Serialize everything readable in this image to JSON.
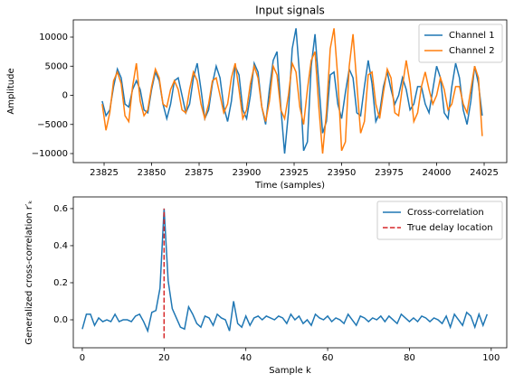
{
  "chart_data": [
    {
      "type": "line",
      "title": "Input signals",
      "xlabel": "Time (samples)",
      "ylabel": "Amplitude",
      "x": [
        23824,
        23826,
        23828,
        23830,
        23832,
        23834,
        23836,
        23838,
        23840,
        23842,
        23844,
        23846,
        23848,
        23850,
        23852,
        23854,
        23856,
        23858,
        23860,
        23862,
        23864,
        23866,
        23868,
        23870,
        23872,
        23874,
        23876,
        23878,
        23880,
        23882,
        23884,
        23886,
        23888,
        23890,
        23892,
        23894,
        23896,
        23898,
        23900,
        23902,
        23904,
        23906,
        23908,
        23910,
        23912,
        23914,
        23916,
        23918,
        23920,
        23922,
        23924,
        23926,
        23928,
        23930,
        23932,
        23934,
        23936,
        23938,
        23940,
        23942,
        23944,
        23946,
        23948,
        23950,
        23952,
        23954,
        23956,
        23958,
        23960,
        23962,
        23964,
        23966,
        23968,
        23970,
        23972,
        23974,
        23976,
        23978,
        23980,
        23982,
        23984,
        23986,
        23988,
        23990,
        23992,
        23994,
        23996,
        23998,
        24000,
        24002,
        24004,
        24006,
        24008,
        24010,
        24012,
        24014,
        24016,
        24018,
        24020,
        24022,
        24024
      ],
      "series": [
        {
          "name": "Channel 1",
          "color": "#1f77b4",
          "values": [
            -1000,
            -3500,
            -2500,
            1500,
            4500,
            3000,
            -1500,
            -2000,
            1000,
            2500,
            1000,
            -2500,
            -3000,
            1000,
            4000,
            2500,
            -1500,
            -4000,
            -1500,
            2500,
            3000,
            0,
            -3000,
            -1500,
            3000,
            5500,
            1000,
            -4000,
            -2500,
            2000,
            5000,
            3000,
            -2000,
            -4500,
            -1000,
            5000,
            3500,
            -2500,
            -4000,
            0,
            5500,
            4000,
            -2000,
            -5000,
            1000,
            6000,
            7500,
            -2000,
            -10000,
            -3000,
            8000,
            11500,
            3000,
            -9500,
            -8000,
            5000,
            10500,
            2000,
            -6500,
            -4500,
            3500,
            4000,
            -1500,
            -4000,
            500,
            4500,
            3000,
            -3000,
            -3500,
            1500,
            6000,
            2000,
            -4500,
            -3000,
            1500,
            4000,
            1000,
            -1500,
            0,
            3000,
            1000,
            -2500,
            -1500,
            1500,
            1500,
            -1500,
            -3000,
            1000,
            5000,
            3000,
            -3000,
            -4000,
            1500,
            5500,
            3000,
            -2500,
            -5000,
            -1000,
            5000,
            2000,
            -3500
          ]
        },
        {
          "name": "Channel 2",
          "color": "#ff7f0e",
          "values": [
            -1500,
            -6000,
            -3000,
            2500,
            4000,
            2000,
            -3500,
            -4500,
            1500,
            5500,
            -1000,
            -3500,
            -2500,
            1500,
            4500,
            3000,
            -1500,
            -2000,
            1000,
            2500,
            1000,
            -2500,
            -3000,
            1000,
            4000,
            2500,
            -1500,
            -4000,
            -1500,
            2500,
            3000,
            0,
            -3000,
            -1500,
            3000,
            5500,
            1000,
            -4000,
            -2500,
            2000,
            5000,
            3000,
            -2000,
            -4500,
            -1000,
            5000,
            3500,
            -2500,
            -4000,
            0,
            5500,
            4000,
            -2000,
            -5000,
            1000,
            6000,
            7500,
            -2000,
            -10000,
            -3000,
            8000,
            11500,
            3000,
            -9500,
            -8000,
            5000,
            10500,
            2000,
            -6500,
            -4500,
            3500,
            4000,
            -1500,
            -4000,
            500,
            4500,
            3000,
            -3000,
            -3500,
            1500,
            6000,
            2000,
            -4500,
            -3000,
            1500,
            4000,
            1000,
            -1500,
            0,
            3000,
            1000,
            -2500,
            -1500,
            1500,
            1500,
            -1500,
            -3000,
            1000,
            5000,
            3000,
            -7000
          ]
        }
      ],
      "xlim": [
        23808.8,
        24036.9
      ],
      "xticks": [
        23825,
        23850,
        23875,
        23900,
        23925,
        23950,
        23975,
        24000,
        24025
      ],
      "ylim": [
        -11550,
        12950
      ],
      "yticks": [
        {
          "value": -10000,
          "label": "−10000"
        },
        {
          "value": -5000,
          "label": "−5000"
        },
        0,
        5000,
        10000
      ],
      "legend": "upper right"
    },
    {
      "type": "line",
      "xlabel": "Sample k",
      "ylabel": "Generalized cross-correlation r′ₖ",
      "x": [
        0,
        1,
        2,
        3,
        4,
        5,
        6,
        7,
        8,
        9,
        10,
        11,
        12,
        13,
        14,
        15,
        16,
        17,
        18,
        19,
        20,
        21,
        22,
        23,
        24,
        25,
        26,
        27,
        28,
        29,
        30,
        31,
        32,
        33,
        34,
        35,
        36,
        37,
        38,
        39,
        40,
        41,
        42,
        43,
        44,
        45,
        46,
        47,
        48,
        49,
        50,
        51,
        52,
        53,
        54,
        55,
        56,
        57,
        58,
        59,
        60,
        61,
        62,
        63,
        64,
        65,
        66,
        67,
        68,
        69,
        70,
        71,
        72,
        73,
        74,
        75,
        76,
        77,
        78,
        79,
        80,
        81,
        82,
        83,
        84,
        85,
        86,
        87,
        88,
        89,
        90,
        91,
        92,
        93,
        94,
        95,
        96,
        97,
        98,
        99
      ],
      "series": [
        {
          "name": "Cross-correlation",
          "color": "#1f77b4",
          "values": [
            -0.05,
            0.03,
            0.03,
            -0.03,
            0.01,
            -0.01,
            0.0,
            -0.01,
            0.03,
            -0.01,
            0.0,
            0.0,
            -0.01,
            0.02,
            0.03,
            -0.01,
            -0.06,
            0.04,
            0.05,
            0.17,
            0.6,
            0.21,
            0.06,
            0.01,
            -0.04,
            -0.05,
            0.07,
            0.03,
            -0.02,
            -0.04,
            0.02,
            0.01,
            -0.03,
            0.03,
            0.01,
            0.0,
            -0.06,
            0.1,
            -0.02,
            -0.04,
            0.02,
            -0.03,
            0.01,
            0.02,
            0.0,
            0.02,
            0.01,
            0.0,
            0.02,
            0.01,
            -0.02,
            0.03,
            0.0,
            0.02,
            -0.02,
            0.0,
            -0.03,
            0.03,
            0.01,
            0.0,
            0.02,
            -0.01,
            0.01,
            0.0,
            -0.02,
            0.03,
            0.0,
            -0.03,
            0.02,
            0.01,
            -0.01,
            0.01,
            0.0,
            0.02,
            -0.01,
            0.02,
            0.0,
            -0.02,
            0.03,
            0.01,
            -0.01,
            0.01,
            -0.01,
            0.02,
            0.01,
            -0.01,
            0.01,
            0.0,
            -0.02,
            0.02,
            -0.04,
            0.03,
            0.0,
            -0.03,
            0.04,
            0.02,
            -0.04,
            0.03,
            -0.03,
            0.03
          ]
        },
        {
          "name": "True delay location",
          "color": "#d62728",
          "dashed": true,
          "x": [
            20,
            20
          ],
          "values": [
            -0.1,
            0.6
          ]
        }
      ],
      "xlim": [
        -2.2,
        103.8
      ],
      "xticks": [
        0,
        20,
        40,
        60,
        80,
        100
      ],
      "ylim": [
        -0.151,
        0.663
      ],
      "yticks": [
        {
          "value": 0,
          "label": "0.0"
        },
        0.2,
        0.4,
        0.6
      ],
      "legend": "upper right"
    }
  ]
}
